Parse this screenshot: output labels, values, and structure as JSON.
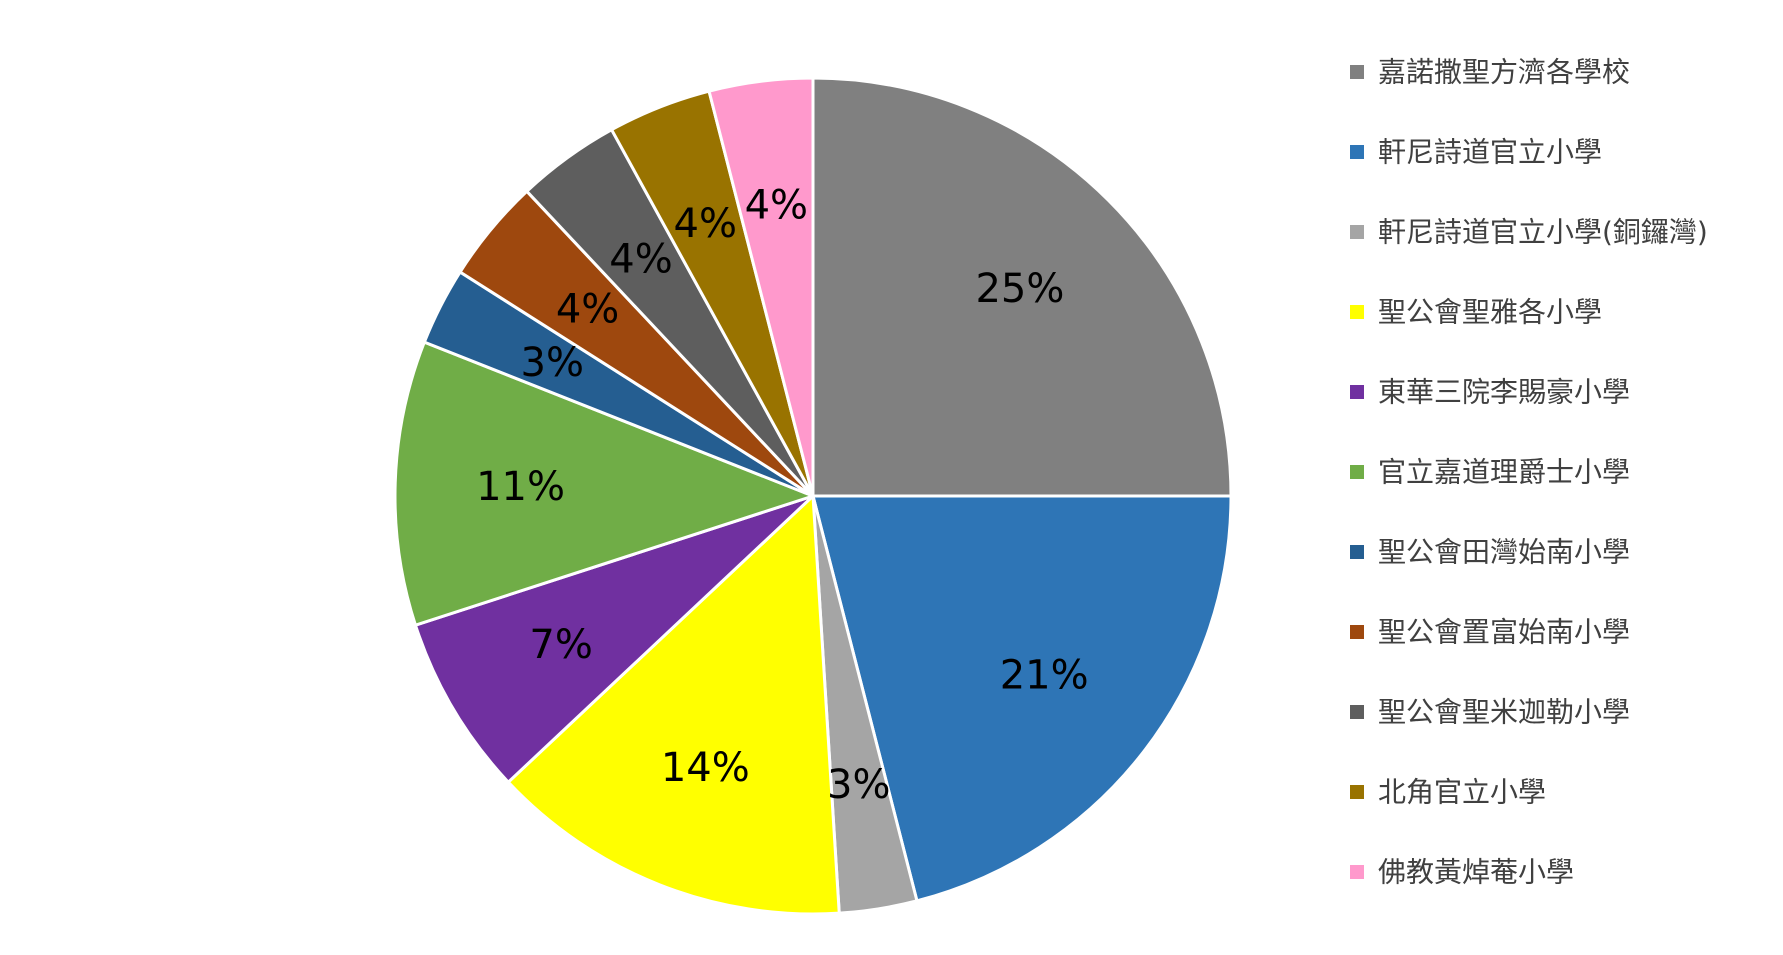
{
  "chart_data": {
    "type": "pie",
    "title": "",
    "legend_position": "right",
    "start_angle_deg": 0,
    "direction": "clockwise",
    "slices": [
      {
        "label": "嘉諾撒聖方濟各學校",
        "value": 25,
        "display": "25%",
        "color": "#808080"
      },
      {
        "label": "軒尼詩道官立小學",
        "value": 21,
        "display": "21%",
        "color": "#2E75B6"
      },
      {
        "label": "軒尼詩道官立小學(銅鑼灣)",
        "value": 3,
        "display": "3%",
        "color": "#A5A5A5"
      },
      {
        "label": "聖公會聖雅各小學",
        "value": 14,
        "display": "14%",
        "color": "#FFFF00"
      },
      {
        "label": "東華三院李賜豪小學",
        "value": 7,
        "display": "7%",
        "color": "#7030A0"
      },
      {
        "label": "官立嘉道理爵士小學",
        "value": 11,
        "display": "11%",
        "color": "#70AD47"
      },
      {
        "label": "聖公會田灣始南小學",
        "value": 3,
        "display": "3%",
        "color": "#255E91"
      },
      {
        "label": "聖公會置富始南小學",
        "value": 4,
        "display": "4%",
        "color": "#9E480E"
      },
      {
        "label": "聖公會聖米迦勒小學",
        "value": 4,
        "display": "4%",
        "color": "#5E5E5E"
      },
      {
        "label": "北角官立小學",
        "value": 4,
        "display": "4%",
        "color": "#997300"
      },
      {
        "label": "佛教黃焯菴小學",
        "value": 4,
        "display": "4%",
        "color": "#FF99CC"
      }
    ]
  }
}
